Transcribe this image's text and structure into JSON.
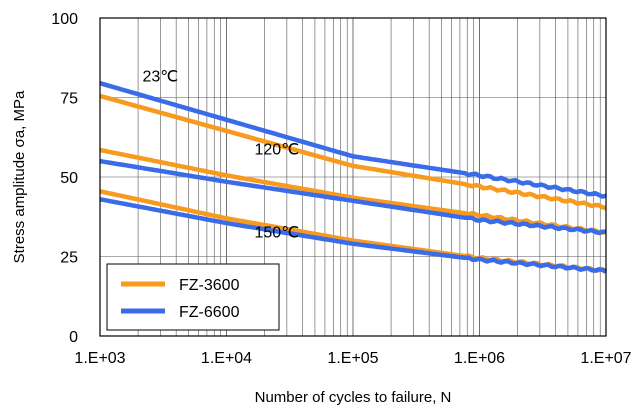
{
  "chart_data": {
    "type": "line",
    "xlabel": "Number of cycles to failure, N",
    "ylabel": "Stress amplitude  σa, MPa",
    "xscale": "log",
    "xlim": [
      1000,
      10000000
    ],
    "ylim": [
      0,
      100
    ],
    "x_ticks": [
      1000,
      10000,
      100000,
      1000000,
      10000000
    ],
    "x_tick_labels": [
      "1.E+03",
      "1.E+04",
      "1.E+05",
      "1.E+06",
      "1.E+07"
    ],
    "y_ticks": [
      0,
      25,
      50,
      75,
      100
    ],
    "y_tick_labels": [
      "0",
      "25",
      "50",
      "75",
      "100"
    ],
    "grid": true,
    "legend": {
      "position": "bottom-left",
      "entries": [
        {
          "name": "FZ-3600",
          "color": "#F79A1E"
        },
        {
          "name": "FZ-6600",
          "color": "#3A6BE8"
        }
      ]
    },
    "annotations": [
      {
        "text": "23℃",
        "x": 3000,
        "y": 80
      },
      {
        "text": "120℃",
        "x": 25000,
        "y": 57
      },
      {
        "text": "150℃",
        "x": 25000,
        "y": 31
      }
    ],
    "series": [
      {
        "name": "FZ-3600",
        "temperature": "23℃",
        "color": "#F79A1E",
        "x": [
          1000,
          10000,
          100000,
          1000000,
          10000000
        ],
        "y": [
          75.5,
          64.5,
          53.5,
          47.0,
          40.5
        ]
      },
      {
        "name": "FZ-6600",
        "temperature": "23℃",
        "color": "#3A6BE8",
        "x": [
          1000,
          10000,
          100000,
          1000000,
          10000000
        ],
        "y": [
          79.5,
          68.0,
          56.5,
          50.5,
          44.0
        ]
      },
      {
        "name": "FZ-3600",
        "temperature": "120℃",
        "color": "#F79A1E",
        "x": [
          1000,
          10000,
          100000,
          1000000,
          10000000
        ],
        "y": [
          58.5,
          50.5,
          43.5,
          38.0,
          32.5
        ]
      },
      {
        "name": "FZ-6600",
        "temperature": "120℃",
        "color": "#3A6BE8",
        "x": [
          1000,
          10000,
          100000,
          1000000,
          10000000
        ],
        "y": [
          55.0,
          48.5,
          42.5,
          36.5,
          32.5
        ]
      },
      {
        "name": "FZ-3600",
        "temperature": "150℃",
        "color": "#F79A1E",
        "x": [
          1000,
          10000,
          100000,
          1000000,
          10000000
        ],
        "y": [
          45.5,
          37.0,
          30.0,
          24.5,
          20.5
        ]
      },
      {
        "name": "FZ-6600",
        "temperature": "150℃",
        "color": "#3A6BE8",
        "x": [
          1000,
          10000,
          100000,
          1000000,
          10000000
        ],
        "y": [
          43.0,
          35.5,
          29.0,
          24.0,
          20.5
        ]
      }
    ]
  }
}
